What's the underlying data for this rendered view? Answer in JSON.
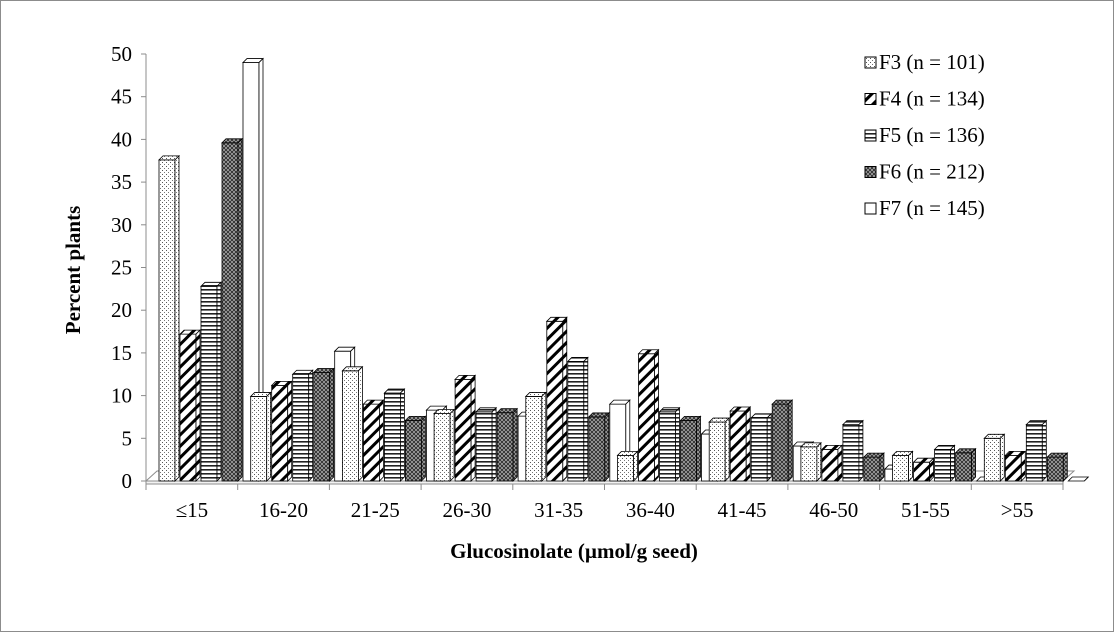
{
  "chart_data": {
    "type": "bar",
    "style": "3d-clustered",
    "categories": [
      "≤15",
      "16-20",
      "21-25",
      "26-30",
      "31-35",
      "36-40",
      "41-45",
      "46-50",
      "51-55",
      ">55"
    ],
    "xlabel": "Glucosinolate (µmol/g seed)",
    "ylabel": "Percent plants",
    "ylim": [
      0,
      50
    ],
    "yticks": [
      "0",
      "5",
      "10",
      "15",
      "20",
      "25",
      "30",
      "35",
      "40",
      "45",
      "50"
    ],
    "grid": false,
    "legend_position": "top-right",
    "series": [
      {
        "name": "F3 (n = 101)",
        "pattern": "dots",
        "values": [
          37.6,
          9.9,
          12.9,
          7.9,
          9.9,
          3.0,
          6.9,
          4.0,
          3.0,
          5.0
        ]
      },
      {
        "name": "F4 (n = 134)",
        "pattern": "wide-diagonal",
        "values": [
          17.2,
          11.2,
          9.0,
          11.9,
          18.7,
          14.9,
          8.2,
          3.7,
          2.2,
          3.0
        ]
      },
      {
        "name": "F5 (n = 136)",
        "pattern": "horizontal-lines",
        "values": [
          22.8,
          12.5,
          10.3,
          8.1,
          14.0,
          8.1,
          7.4,
          6.6,
          3.7,
          6.6
        ]
      },
      {
        "name": "F6 (n = 212)",
        "pattern": "dark-checker",
        "values": [
          39.6,
          12.7,
          7.1,
          8.0,
          7.5,
          7.1,
          9.0,
          2.8,
          3.3,
          2.8
        ]
      },
      {
        "name": "F7 (n = 145)",
        "pattern": "none",
        "values": [
          49.0,
          15.2,
          8.3,
          7.6,
          9.0,
          5.5,
          4.1,
          1.4,
          0.0,
          0.0
        ]
      }
    ]
  }
}
